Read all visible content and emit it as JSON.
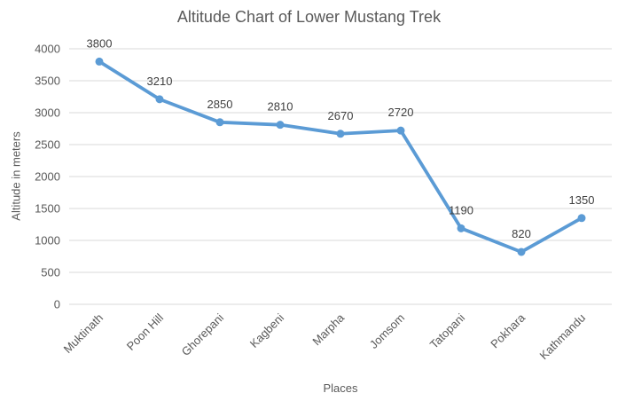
{
  "chart_data": {
    "type": "line",
    "title": "Altitude Chart of Lower Mustang Trek",
    "xlabel": "Places",
    "ylabel": "Altitude in meters",
    "categories": [
      "Muktinath",
      "Poon Hill",
      "Ghorepani",
      "Kagbeni",
      "Marpha",
      "Jomsom",
      "Tatopani",
      "Pokhara",
      "Kathmandu"
    ],
    "values": [
      3800,
      3210,
      2850,
      2810,
      2670,
      2720,
      1190,
      820,
      1350
    ],
    "data_labels": [
      "3800",
      "3210",
      "2850",
      "2810",
      "2670",
      "2720",
      "1190",
      "820",
      "1350"
    ],
    "ytick_labels": [
      "0",
      "500",
      "1000",
      "1500",
      "2000",
      "2500",
      "3000",
      "3500",
      "4000"
    ],
    "ylim": [
      0,
      4000
    ],
    "ytick_step": 500,
    "grid": true,
    "legend_position": "none",
    "colors": {
      "line": "#5B9BD5",
      "marker": "#5B9BD5",
      "gridline": "#D9D9D9",
      "axis_text": "#595959",
      "data_label": "#404040",
      "title": "#595959",
      "background": "#FFFFFF"
    }
  }
}
